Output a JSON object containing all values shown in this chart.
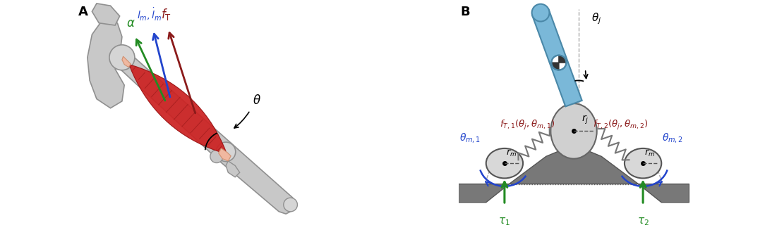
{
  "fig_width": 10.84,
  "fig_height": 3.27,
  "dpi": 100,
  "panel_A_label": "A",
  "panel_B_label": "B",
  "label_fontsize": 13,
  "label_fontweight": "bold",
  "bg_color": "#ffffff",
  "bone_color": "#c8c8c8",
  "bone_edge": "#909090",
  "muscle_red": "#cc2222",
  "muscle_edge": "#991111",
  "tendon_color": "#f0b8a0",
  "tendon_edge": "#d09070",
  "green_arrow": "#228B22",
  "blue_arrow": "#2244cc",
  "red_arrow": "#8B1a1a",
  "ground_fill": "#787878",
  "ground_edge": "#555555",
  "joint_fill": "#d0d0d0",
  "joint_edge": "#666666",
  "motor_fill": "#d8d8d8",
  "motor_edge": "#555555",
  "arm_fill": "#7ab8d8",
  "arm_edge": "#4a88a8",
  "blue_label": "#2244cc",
  "red_label": "#8B1a1a",
  "green_label": "#228B22"
}
